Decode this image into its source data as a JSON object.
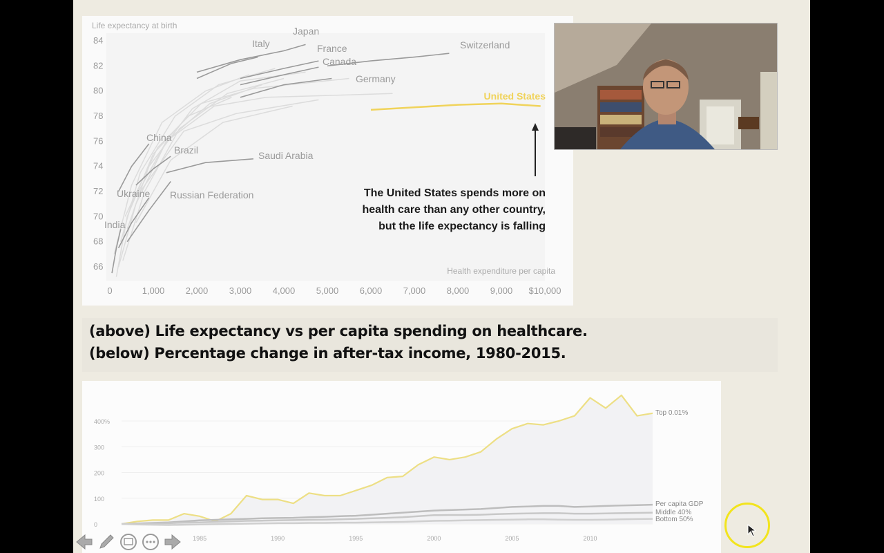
{
  "chart1": {
    "title": "Life expectancy at birth",
    "xlabel": "Health expenditure per capita",
    "yticks": [
      "84",
      "82",
      "80",
      "78",
      "76",
      "74",
      "72",
      "70",
      "68",
      "66"
    ],
    "xticks": [
      "0",
      "1,000",
      "2,000",
      "3,000",
      "4,000",
      "5,000",
      "6,000",
      "7,000",
      "8,000",
      "9,000",
      "$10,000"
    ],
    "country_labels": [
      "Japan",
      "Italy",
      "France",
      "Canada",
      "Switzerland",
      "Germany",
      "United States",
      "China",
      "Brazil",
      "Saudi Arabia",
      "Ukraine",
      "Russian Federation",
      "India"
    ],
    "annotation": [
      "The United States spends more on",
      "health care than any other country,",
      "but the life expectancy is falling"
    ],
    "highlight_color": "#f0d35a",
    "line_color": "#9a9a9a"
  },
  "caption": {
    "line1": "(above) Life expectancy vs per capita spending on healthcare.",
    "line2": "(below) Percentage change in after-tax income, 1980-2015."
  },
  "chart2": {
    "yticks": [
      "400%",
      "300",
      "200",
      "100",
      "0"
    ],
    "xticks": [
      "1985",
      "1990",
      "1995",
      "2000",
      "2005",
      "2010"
    ],
    "series_labels": [
      "Top 0.01%",
      "Per capita GDP",
      "Middle 40%",
      "Bottom 50%"
    ],
    "highlight_color": "#eddf85"
  },
  "chart_data": [
    {
      "type": "line",
      "title": "Life expectancy at birth",
      "xlabel": "Health expenditure per capita",
      "ylabel": "Life expectancy at birth",
      "xlim": [
        0,
        10000
      ],
      "ylim": [
        65,
        84
      ],
      "series": [
        {
          "name": "United States",
          "x": [
            6000,
            7000,
            8000,
            9000,
            9900
          ],
          "y": [
            78.5,
            78.7,
            78.9,
            79.0,
            78.8
          ]
        },
        {
          "name": "Switzerland",
          "x": [
            5000,
            6000,
            7000,
            7800
          ],
          "y": [
            82.0,
            82.4,
            82.7,
            83.0
          ]
        },
        {
          "name": "Japan",
          "x": [
            2000,
            3000,
            4000,
            4500
          ],
          "y": [
            81.5,
            82.5,
            83.2,
            83.7
          ]
        },
        {
          "name": "Italy",
          "x": [
            2000,
            2800,
            3400
          ],
          "y": [
            81.0,
            82.2,
            82.7
          ]
        },
        {
          "name": "France",
          "x": [
            3000,
            4000,
            4800
          ],
          "y": [
            81.0,
            81.8,
            82.4
          ]
        },
        {
          "name": "Canada",
          "x": [
            3000,
            4000,
            4800
          ],
          "y": [
            80.5,
            81.3,
            81.9
          ]
        },
        {
          "name": "Germany",
          "x": [
            3000,
            4000,
            5100
          ],
          "y": [
            79.5,
            80.5,
            81.0
          ]
        },
        {
          "name": "Saudi Arabia",
          "x": [
            1300,
            2200,
            3300
          ],
          "y": [
            73.5,
            74.3,
            74.6
          ]
        },
        {
          "name": "Russian Federation",
          "x": [
            400,
            900,
            1400
          ],
          "y": [
            68.0,
            70.5,
            72.8
          ]
        },
        {
          "name": "China",
          "x": [
            200,
            500,
            900
          ],
          "y": [
            72.0,
            74.0,
            75.8
          ]
        },
        {
          "name": "Brazil",
          "x": [
            600,
            1000,
            1400
          ],
          "y": [
            72.5,
            73.8,
            74.8
          ]
        },
        {
          "name": "India",
          "x": [
            50,
            150,
            250
          ],
          "y": [
            65.5,
            67.5,
            69.0
          ]
        },
        {
          "name": "Ukraine",
          "x": [
            200,
            500,
            900
          ],
          "y": [
            67.5,
            69.5,
            71.5
          ]
        }
      ]
    },
    {
      "type": "line",
      "title": "",
      "xlabel": "",
      "ylabel": "",
      "ylim": [
        0,
        450
      ],
      "x": [
        1980,
        1981,
        1982,
        1983,
        1984,
        1985,
        1986,
        1987,
        1988,
        1989,
        1990,
        1991,
        1992,
        1993,
        1994,
        1995,
        1996,
        1997,
        1998,
        1999,
        2000,
        2001,
        2002,
        2003,
        2004,
        2005,
        2006,
        2007,
        2008,
        2009,
        2010,
        2011,
        2012,
        2013,
        2014
      ],
      "series": [
        {
          "name": "Top 0.01%",
          "values": [
            0,
            10,
            15,
            15,
            40,
            30,
            10,
            40,
            110,
            95,
            95,
            80,
            120,
            110,
            110,
            130,
            150,
            180,
            185,
            230,
            260,
            250,
            260,
            280,
            330,
            370,
            390,
            385,
            400,
            420,
            490,
            450,
            500,
            420,
            430
          ]
        },
        {
          "name": "Per capita GDP",
          "values": [
            0,
            2,
            4,
            6,
            10,
            14,
            16,
            18,
            20,
            22,
            23,
            24,
            26,
            28,
            30,
            32,
            36,
            40,
            44,
            48,
            52,
            54,
            56,
            58,
            62,
            66,
            68,
            70,
            70,
            66,
            68,
            70,
            72,
            73,
            75
          ]
        },
        {
          "name": "Middle 40%",
          "values": [
            0,
            1,
            2,
            3,
            5,
            6,
            8,
            10,
            12,
            13,
            14,
            15,
            16,
            17,
            18,
            20,
            22,
            24,
            26,
            30,
            34,
            35,
            35,
            36,
            38,
            40,
            41,
            42,
            42,
            40,
            40,
            41,
            42,
            43,
            44
          ]
        },
        {
          "name": "Bottom 50%",
          "values": [
            0,
            -2,
            -3,
            -4,
            -3,
            -2,
            -1,
            0,
            1,
            2,
            3,
            3,
            4,
            4,
            5,
            5,
            6,
            7,
            8,
            10,
            12,
            13,
            14,
            15,
            16,
            17,
            18,
            18,
            17,
            16,
            16,
            17,
            18,
            19,
            20
          ]
        }
      ]
    }
  ]
}
